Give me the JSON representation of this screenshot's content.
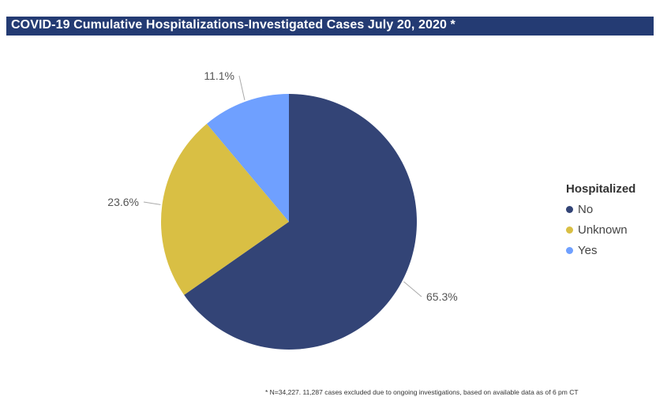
{
  "header": {
    "title": "COVID-19 Cumulative Hospitalizations-Investigated Cases July 20, 2020 *"
  },
  "chart_data": {
    "type": "pie",
    "legend_title": "Hospitalized",
    "legend_position": "right",
    "slices": [
      {
        "label": "No",
        "value": 65.3,
        "display": "65.3%",
        "color": "#334476"
      },
      {
        "label": "Unknown",
        "value": 23.6,
        "display": "23.6%",
        "color": "#d9bf44"
      },
      {
        "label": "Yes",
        "value": 11.1,
        "display": "11.1%",
        "color": "#6fa0ff"
      }
    ]
  },
  "footnote": "* N=34,227. 11,287 cases excluded due to ongoing investigations, based on available data as of 6 pm CT"
}
